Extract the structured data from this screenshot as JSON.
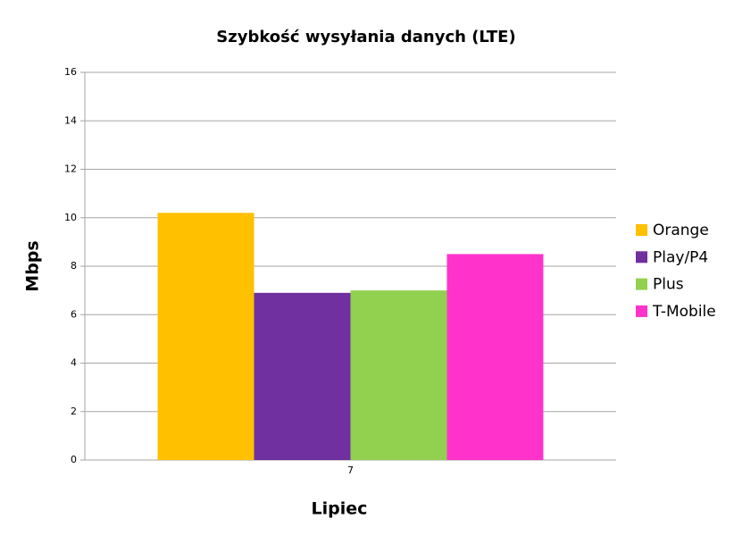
{
  "chart_data": {
    "type": "bar",
    "title": "Szybkość wysyłania danych (LTE)",
    "x_label": "Lipiec",
    "y_label": "Mbps",
    "categories": [
      "7"
    ],
    "series": [
      {
        "name": "Orange",
        "color": "#ffc000",
        "values": [
          10.2
        ]
      },
      {
        "name": "Play/P4",
        "color": "#7030a0",
        "values": [
          6.9
        ]
      },
      {
        "name": "Plus",
        "color": "#92d050",
        "values": [
          7.0
        ]
      },
      {
        "name": "T-Mobile",
        "color": "#ff33cc",
        "values": [
          8.5
        ]
      }
    ],
    "ylim": [
      0,
      16
    ],
    "yticks": [
      0,
      2,
      4,
      6,
      8,
      10,
      12,
      14,
      16
    ],
    "grid": true,
    "legend": "right"
  }
}
